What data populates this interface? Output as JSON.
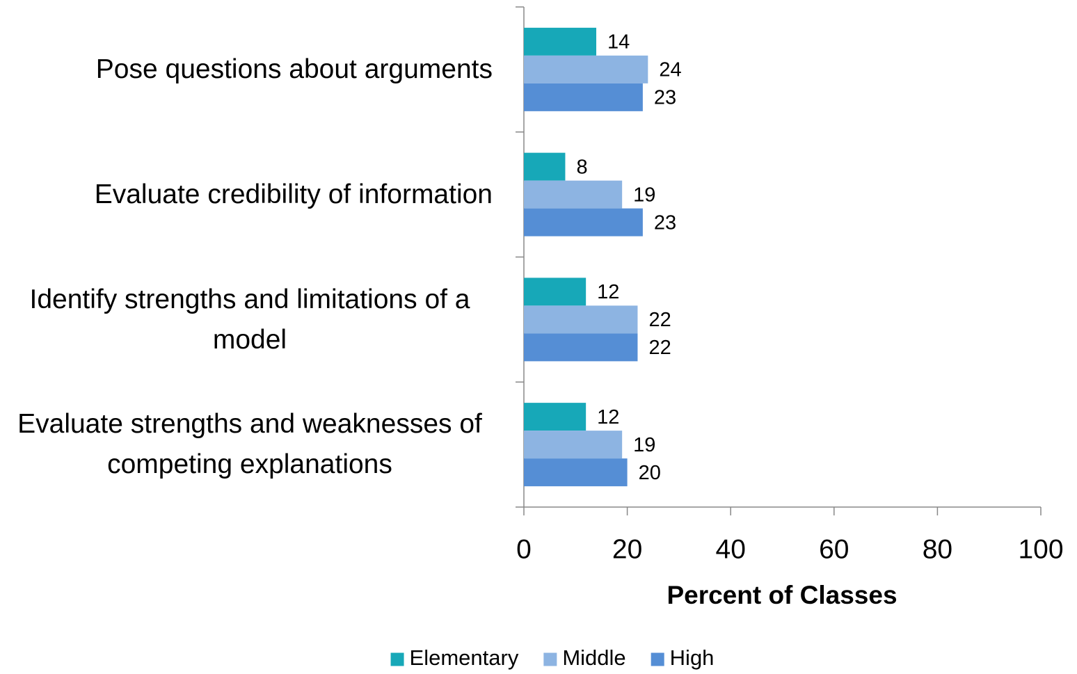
{
  "chart_data": {
    "type": "barh",
    "xlabel": "Percent of Classes",
    "categories": [
      "Pose questions about arguments",
      "Evaluate credibility of information",
      "Identify strengths and limitations of a model",
      "Evaluate strengths and weaknesses of competing explanations"
    ],
    "series": [
      {
        "name": "Elementary",
        "color": "#17a8b8",
        "values": [
          14,
          8,
          12,
          12
        ]
      },
      {
        "name": "Middle",
        "color": "#8db4e2",
        "values": [
          24,
          19,
          22,
          19
        ]
      },
      {
        "name": "High",
        "color": "#558ed5",
        "values": [
          23,
          23,
          22,
          20
        ]
      }
    ],
    "xlim": [
      0,
      100
    ],
    "xticks": [
      0,
      20,
      40,
      60,
      80,
      100
    ],
    "legend": "bottom"
  }
}
